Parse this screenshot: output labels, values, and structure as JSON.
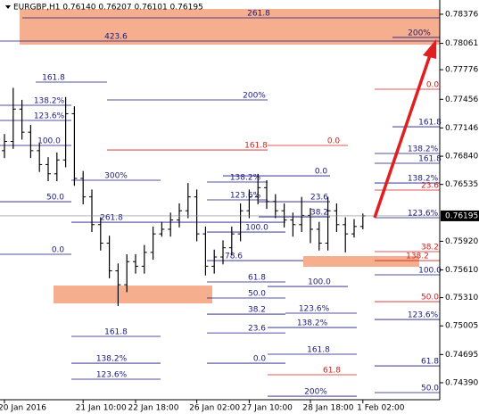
{
  "chart_data": {
    "type": "ohlc",
    "title": "EURGBP,H1  0.76140 0.76207 0.76101 0.76195",
    "categories": [
      "20 Jan 2016",
      null,
      null,
      null,
      null,
      null,
      null,
      null,
      null,
      "21 Jan 10:00",
      null,
      null,
      null,
      null,
      null,
      "22 Jan 18:00",
      null,
      null,
      null,
      null,
      null,
      null,
      "26 Jan 02:00",
      null,
      null,
      null,
      null,
      null,
      "27 Jan 10:00",
      null,
      null,
      null,
      null,
      null,
      null,
      "28 Jan 18:00",
      null,
      null,
      null,
      null,
      null,
      "1 Feb 02:00"
    ],
    "open": [
      0.769,
      0.77,
      0.7735,
      0.771,
      0.769,
      0.7675,
      0.7665,
      0.768,
      0.773,
      0.766,
      0.764,
      0.761,
      0.759,
      0.756,
      0.7545,
      0.757,
      0.7565,
      0.758,
      0.76,
      0.7605,
      0.7615,
      0.7625,
      0.764,
      0.76,
      0.7565,
      0.7575,
      0.7585,
      0.76,
      0.7625,
      0.764,
      0.765,
      0.7635,
      0.7625,
      0.7615,
      0.761,
      0.762,
      0.7605,
      0.759,
      0.7625,
      0.761,
      0.76,
      0.7608
    ],
    "high": [
      0.7708,
      0.7758,
      0.7745,
      0.7718,
      0.7698,
      0.7683,
      0.7688,
      0.7748,
      0.7738,
      0.7668,
      0.7648,
      0.7618,
      0.7598,
      0.7568,
      0.7578,
      0.7578,
      0.7588,
      0.7608,
      0.7613,
      0.7623,
      0.7633,
      0.7655,
      0.7648,
      0.7608,
      0.7583,
      0.7593,
      0.7608,
      0.7633,
      0.7648,
      0.7665,
      0.7658,
      0.7643,
      0.7633,
      0.7623,
      0.764,
      0.7628,
      0.7613,
      0.764,
      0.7633,
      0.7618,
      0.7616,
      0.7622
    ],
    "low": [
      0.7682,
      0.7692,
      0.7702,
      0.7682,
      0.7667,
      0.7657,
      0.7657,
      0.7672,
      0.7652,
      0.7632,
      0.7602,
      0.7582,
      0.7552,
      0.7522,
      0.7537,
      0.7557,
      0.7557,
      0.7572,
      0.7597,
      0.7597,
      0.7607,
      0.7617,
      0.7592,
      0.7555,
      0.7557,
      0.7567,
      0.7577,
      0.7592,
      0.7617,
      0.7632,
      0.7627,
      0.7617,
      0.7607,
      0.7597,
      0.7602,
      0.759,
      0.7582,
      0.7582,
      0.7602,
      0.758,
      0.7596,
      0.7605
    ],
    "close": [
      0.77,
      0.7735,
      0.771,
      0.769,
      0.7675,
      0.7665,
      0.768,
      0.773,
      0.766,
      0.764,
      0.761,
      0.759,
      0.756,
      0.7545,
      0.757,
      0.7565,
      0.758,
      0.76,
      0.7605,
      0.7615,
      0.7625,
      0.764,
      0.76,
      0.7565,
      0.7575,
      0.7585,
      0.76,
      0.7625,
      0.764,
      0.765,
      0.7635,
      0.7625,
      0.7615,
      0.761,
      0.762,
      0.7605,
      0.759,
      0.7625,
      0.761,
      0.76,
      0.7608,
      0.76195
    ],
    "color": "#000000",
    "last_price": 0.76195,
    "ylim": [
      0.74206,
      0.7853
    ],
    "yticks": [
      0.78376,
      0.78061,
      0.77776,
      0.77456,
      0.77146,
      {
        "value": 0.7684,
        "label": "0.76840"
      },
      0.76535,
      {
        "value": 0.7592,
        "label": "0.75920"
      },
      {
        "value": 0.7561,
        "label": "0.75610"
      },
      {
        "value": 0.7531,
        "label": "0.75310"
      },
      0.75005,
      0.74695,
      {
        "value": 0.7439,
        "label": "0.74390"
      }
    ],
    "zones": [
      {
        "from": 0.78433,
        "to": 0.78047
      },
      {
        "from": 0.7576,
        "to": 0.75644
      },
      {
        "from": 0.75441,
        "to": 0.75248
      }
    ],
    "zone_color": "#f4a582",
    "levels": [
      {
        "label": "261.8",
        "value": 0.78337,
        "color": "#1a1a80"
      },
      {
        "label": "423.6",
        "value": 0.78086,
        "color": "#1a1a80"
      },
      {
        "label": "200%",
        "value": 0.78125,
        "color": "#1a1a80"
      },
      {
        "label": "161.8",
        "value": 0.77642,
        "color": "#1a1a80"
      },
      {
        "label": "0.0",
        "value": 0.77565,
        "color": "#d02020"
      },
      {
        "label": "200%",
        "value": 0.77449,
        "color": "#1a1a80"
      },
      {
        "label": "138.2%",
        "value": 0.77391,
        "color": "#1a1a80"
      },
      {
        "label": "123.6%",
        "value": 0.77227,
        "color": "#1a1a80"
      },
      {
        "label": "100.0",
        "value": 0.76957,
        "color": "#1a1a80"
      },
      {
        "label": "0.0",
        "value": 0.76957,
        "color": "#d02020"
      },
      {
        "label": "161.8",
        "value": 0.77159,
        "color": "#1a1a80"
      },
      {
        "label": "161.8",
        "value": 0.76908,
        "color": "#d02020"
      },
      {
        "label": "138.2%",
        "value": 0.7687,
        "color": "#1a1a80"
      },
      {
        "label": "161.8",
        "value": 0.76764,
        "color": "#1a1a80"
      },
      {
        "label": "0.0",
        "value": 0.76628,
        "color": "#1a1a80"
      },
      {
        "label": "300%",
        "value": 0.7658,
        "color": "#1a1a80"
      },
      {
        "label": "138.2%",
        "value": 0.76561,
        "color": "#1a1a80"
      },
      {
        "label": "138.2%",
        "value": 0.76551,
        "color": "#1a1a80"
      },
      {
        "label": "23.6",
        "value": 0.76474,
        "color": "#d02020"
      },
      {
        "label": "123.6%",
        "value": 0.76368,
        "color": "#1a1a80"
      },
      {
        "label": "50.0",
        "value": 0.76348,
        "color": "#1a1a80"
      },
      {
        "label": "23.6",
        "value": 0.76348,
        "color": "#1a1a80"
      },
      {
        "label": "38.2",
        "value": 0.76184,
        "color": "#1a1a80"
      },
      {
        "label": "123.6%",
        "value": 0.76175,
        "color": "#1a1a80"
      },
      {
        "label": "261.8",
        "value": 0.76126,
        "color": "#1a1a80"
      },
      {
        "label": "100.0",
        "value": 0.7602,
        "color": "#1a1a80"
      },
      {
        "label": "0.0",
        "value": 0.75779,
        "color": "#1a1a80"
      },
      {
        "label": "38.2",
        "value": 0.75808,
        "color": "#d02020"
      },
      {
        "label": "78.6",
        "value": 0.75711,
        "color": "#1a1a80"
      },
      {
        "label": "138.2",
        "value": 0.75711,
        "color": "#d02020"
      },
      {
        "label": "100.0",
        "value": 0.75557,
        "color": "#1a1a80"
      },
      {
        "label": "61.8",
        "value": 0.7548,
        "color": "#1a1a80"
      },
      {
        "label": "100.0",
        "value": 0.75431,
        "color": "#1a1a80"
      },
      {
        "label": "50.0",
        "value": 0.75306,
        "color": "#1a1a80"
      },
      {
        "label": "50.0",
        "value": 0.75267,
        "color": "#d02020"
      },
      {
        "label": "38.2",
        "value": 0.75132,
        "color": "#1a1a80"
      },
      {
        "label": "123.6%",
        "value": 0.75142,
        "color": "#1a1a80"
      },
      {
        "label": "123.6%",
        "value": 0.75074,
        "color": "#1a1a80"
      },
      {
        "label": "138.2%",
        "value": 0.74987,
        "color": "#1a1a80"
      },
      {
        "label": "23.6",
        "value": 0.74929,
        "color": "#1a1a80"
      },
      {
        "label": "161.8",
        "value": 0.74891,
        "color": "#1a1a80"
      },
      {
        "label": "161.8",
        "value": 0.74698,
        "color": "#1a1a80"
      },
      {
        "label": "0.0",
        "value": 0.74601,
        "color": "#1a1a80"
      },
      {
        "label": "138.2%",
        "value": 0.74601,
        "color": "#1a1a80"
      },
      {
        "label": "61.8",
        "value": 0.74572,
        "color": "#1a1a80"
      },
      {
        "label": "61.8",
        "value": 0.74476,
        "color": "#d02020"
      },
      {
        "label": "123.6%",
        "value": 0.74428,
        "color": "#1a1a80"
      },
      {
        "label": "200%",
        "value": 0.74244,
        "color": "#1a1a80"
      },
      {
        "label": "50.0",
        "value": 0.74283,
        "color": "#1a1a80"
      }
    ]
  }
}
